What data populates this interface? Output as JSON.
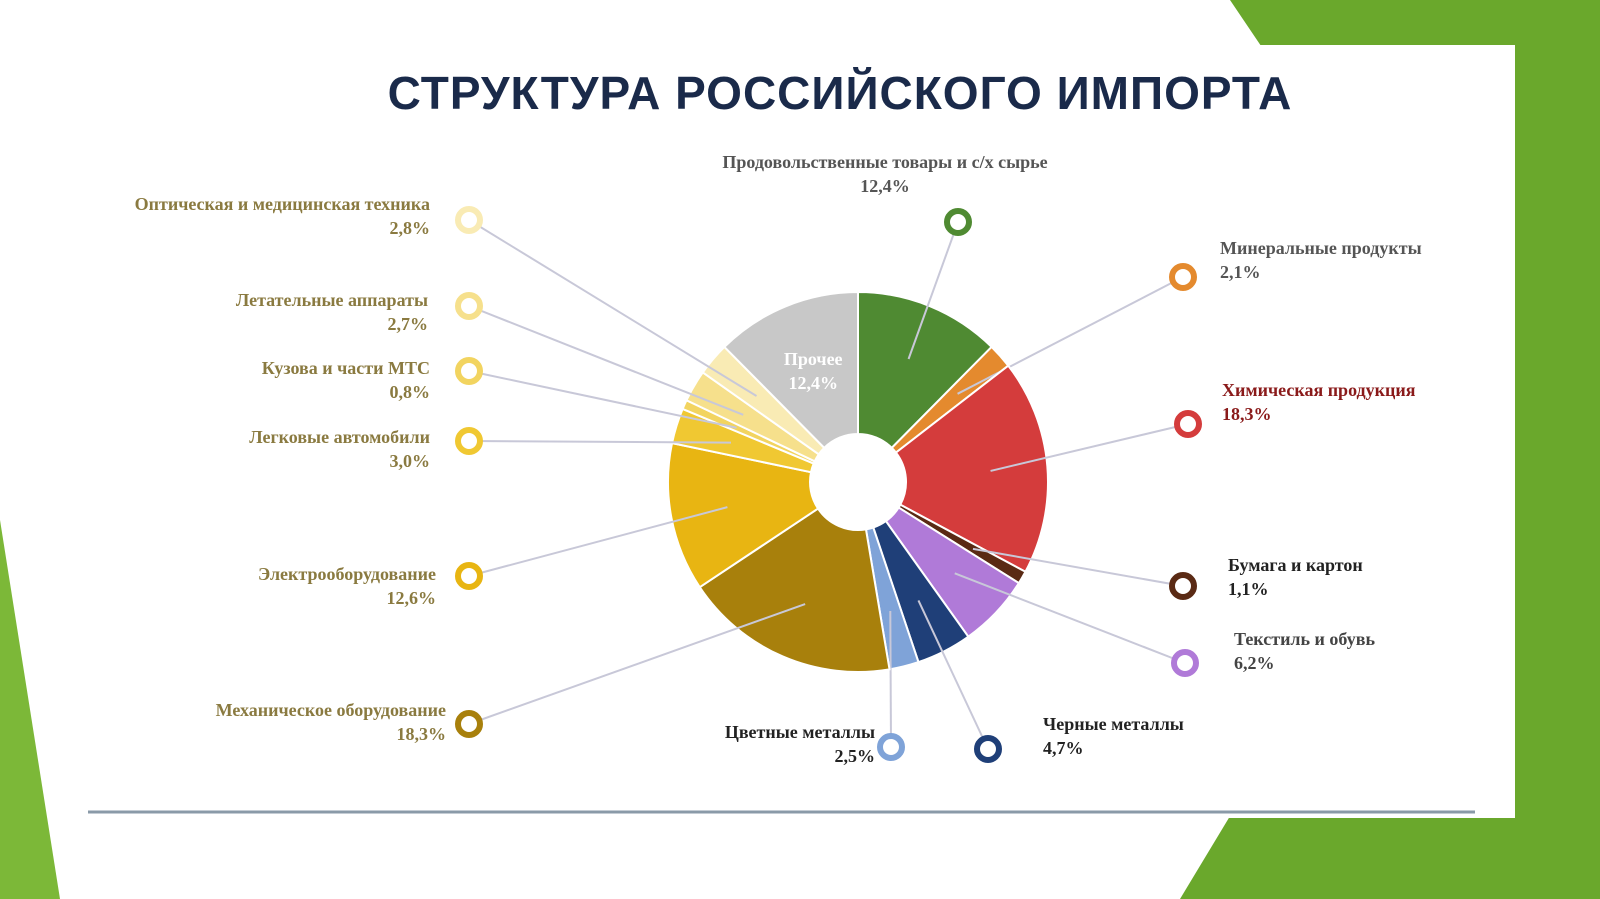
{
  "chart_data": {
    "type": "pie",
    "title": "СТРУКТУРА РОССИЙСКОГО ИМПОРТА",
    "categories": [
      "Продовольственные товары и с/х сырье",
      "Минеральные продукты",
      "Химическая продукция",
      "Бумага и картон",
      "Текстиль и обувь",
      "Черные металлы",
      "Цветные металлы",
      "Механическое оборудование",
      "Электрооборудование",
      "Легковые автомобили",
      "Кузова и части МТС",
      "Летательные аппараты",
      "Оптическая и медицинская техника",
      "Прочее"
    ],
    "values": [
      12.4,
      2.1,
      18.3,
      1.1,
      6.2,
      4.7,
      2.5,
      18.3,
      12.6,
      3.0,
      0.8,
      2.7,
      2.8,
      12.4
    ],
    "value_labels": [
      "12,4%",
      "2,1%",
      "18,3%",
      "1,1%",
      "6,2%",
      "4,7%",
      "2,5%",
      "18,3%",
      "12,6%",
      "3,0%",
      "0,8%",
      "2,7%",
      "2,8%",
      "12,4%"
    ],
    "colors": [
      "#4f8a32",
      "#e48a2e",
      "#d43c3c",
      "#5a2a14",
      "#b07ad8",
      "#1f3f78",
      "#7fa3d8",
      "#a8800c",
      "#e8b512",
      "#f0c832",
      "#f2d460",
      "#f6e08c",
      "#f9ebb4",
      "#c8c8c8"
    ]
  }
}
